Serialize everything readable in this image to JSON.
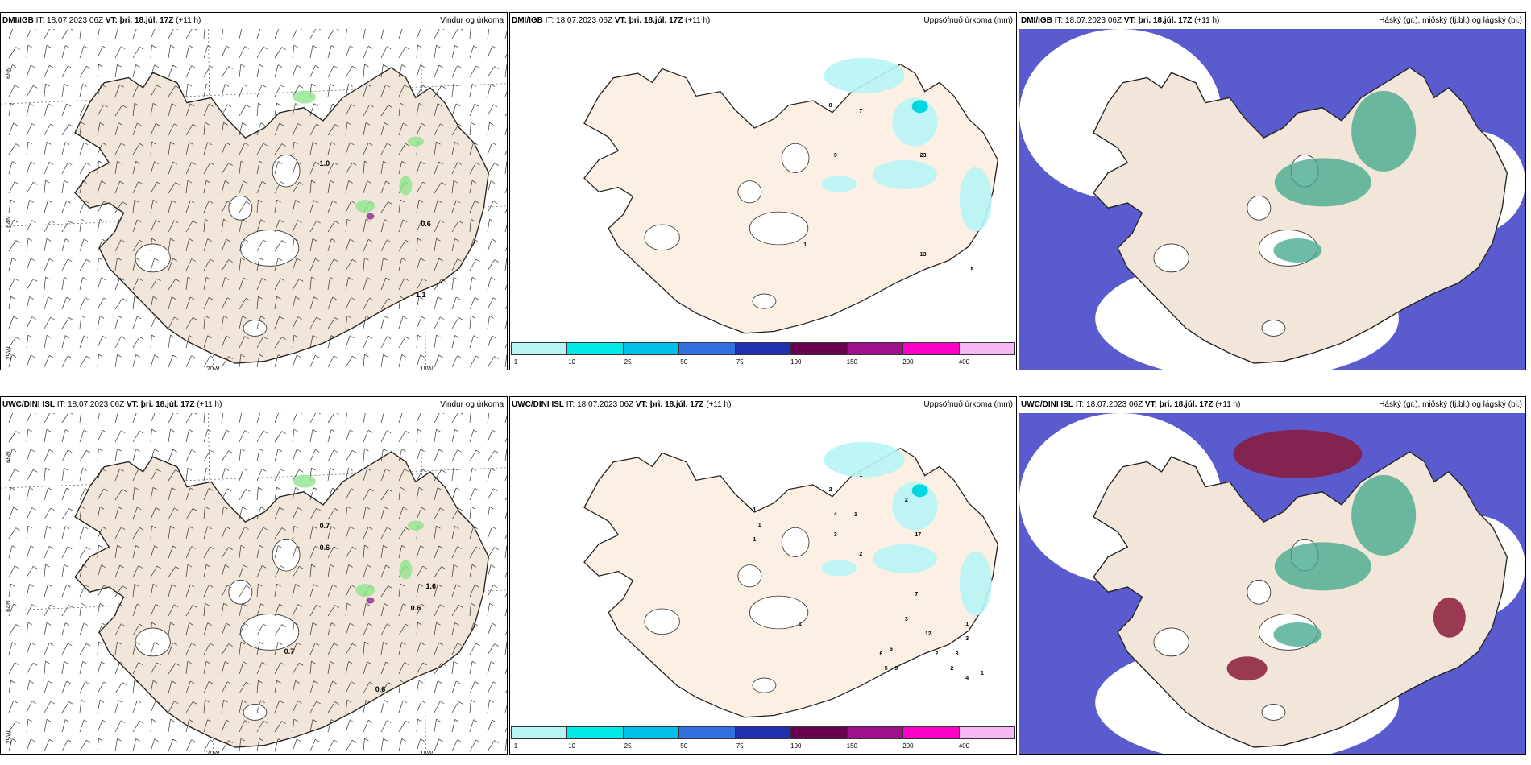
{
  "colors": {
    "land": "#f1e6d9",
    "ocean": "#ffffff",
    "precip_green": "#8ee68e",
    "precip_purple": "#a04ca0",
    "low_cloud": "#5b5bd0",
    "mid_cloud": "#3da68a",
    "high_cloud": "#8b1a3a"
  },
  "rows": [
    {
      "model_name": "DMI/IGB",
      "panels": [
        {
          "id": "wind",
          "it_label": "IT: 18.07.2023 06Z",
          "vt_label": "VT: þri. 18.júl. 17Z",
          "lead": "(+11 h)",
          "title_right": "Vindur og úrkoma",
          "grid_labels": [
            "65N",
            "64N",
            "20W",
            "15W",
            "25W"
          ],
          "values": [
            {
              "text": "1.0",
              "x": 0.63,
              "y": 0.24
            },
            {
              "text": "0.6",
              "x": 0.83,
              "y": 0.35
            },
            {
              "text": "1.1",
              "x": 0.82,
              "y": 0.48
            }
          ]
        },
        {
          "id": "precip",
          "it_label": "IT: 18.07.2023 06Z",
          "vt_label": "VT: þri. 18.júl. 17Z",
          "lead": "(+11 h)",
          "title_right": "Uppsöfnuð úrkoma (mm)",
          "values": [
            {
              "text": "8",
              "x": 0.63,
              "y": 0.15
            },
            {
              "text": "7",
              "x": 0.69,
              "y": 0.16
            },
            {
              "text": "9",
              "x": 0.64,
              "y": 0.25
            },
            {
              "text": "23",
              "x": 0.81,
              "y": 0.25
            },
            {
              "text": "1",
              "x": 0.58,
              "y": 0.43
            },
            {
              "text": "13",
              "x": 0.81,
              "y": 0.45
            },
            {
              "text": "5",
              "x": 0.91,
              "y": 0.48
            }
          ],
          "colorbar": [
            "1",
            "10",
            "25",
            "50",
            "75",
            "100",
            "150",
            "200",
            "400"
          ]
        },
        {
          "id": "clouds",
          "it_label": "IT: 18.07.2023 06Z",
          "vt_label": "VT: þri. 18.júl. 17Z",
          "lead": "(+11 h)",
          "title_right": "Háský (gr.), miðský (fj.bl.) og lágský (bl.)"
        }
      ]
    },
    {
      "model_name": "UWC/DINI ISL",
      "panels": [
        {
          "id": "wind",
          "it_label": "IT: 18.07.2023 06Z",
          "vt_label": "VT: þri. 18.júl. 17Z",
          "lead": "(+11 h)",
          "title_right": "Vindur og úrkoma",
          "grid_labels": [
            "65N",
            "64N",
            "20W",
            "15W",
            "25W"
          ],
          "values": [
            {
              "text": "0.7",
              "x": 0.63,
              "y": 0.2
            },
            {
              "text": "0.6",
              "x": 0.63,
              "y": 0.24
            },
            {
              "text": "1.6",
              "x": 0.84,
              "y": 0.31
            },
            {
              "text": "0.6",
              "x": 0.81,
              "y": 0.35
            },
            {
              "text": "0.7",
              "x": 0.56,
              "y": 0.43
            },
            {
              "text": "0.6",
              "x": 0.74,
              "y": 0.5
            }
          ]
        },
        {
          "id": "precip",
          "it_label": "IT: 18.07.2023 06Z",
          "vt_label": "VT: þri. 18.júl. 17Z",
          "lead": "(+11 h)",
          "title_right": "Uppsöfnuð úrkoma (mm)",
          "values": [
            {
              "text": "1",
              "x": 0.69,
              "y": 0.12
            },
            {
              "text": "2",
              "x": 0.63,
              "y": 0.15
            },
            {
              "text": "2",
              "x": 0.78,
              "y": 0.17
            },
            {
              "text": "4",
              "x": 0.64,
              "y": 0.2
            },
            {
              "text": "1",
              "x": 0.68,
              "y": 0.2
            },
            {
              "text": "3",
              "x": 0.64,
              "y": 0.24
            },
            {
              "text": "17",
              "x": 0.8,
              "y": 0.24
            },
            {
              "text": "2",
              "x": 0.69,
              "y": 0.28
            },
            {
              "text": "1",
              "x": 0.48,
              "y": 0.19
            },
            {
              "text": "1",
              "x": 0.49,
              "y": 0.22
            },
            {
              "text": "1",
              "x": 0.48,
              "y": 0.25
            },
            {
              "text": "7",
              "x": 0.8,
              "y": 0.36
            },
            {
              "text": "1",
              "x": 0.57,
              "y": 0.42
            },
            {
              "text": "3",
              "x": 0.78,
              "y": 0.41
            },
            {
              "text": "12",
              "x": 0.82,
              "y": 0.44
            },
            {
              "text": "6",
              "x": 0.75,
              "y": 0.47
            },
            {
              "text": "6",
              "x": 0.73,
              "y": 0.48
            },
            {
              "text": "5",
              "x": 0.74,
              "y": 0.51
            },
            {
              "text": "9",
              "x": 0.76,
              "y": 0.51
            },
            {
              "text": "2",
              "x": 0.84,
              "y": 0.48
            },
            {
              "text": "3",
              "x": 0.88,
              "y": 0.48
            },
            {
              "text": "2",
              "x": 0.87,
              "y": 0.51
            },
            {
              "text": "4",
              "x": 0.9,
              "y": 0.53
            },
            {
              "text": "1",
              "x": 0.93,
              "y": 0.52
            },
            {
              "text": "1",
              "x": 0.9,
              "y": 0.42
            },
            {
              "text": "3",
              "x": 0.9,
              "y": 0.45
            }
          ],
          "colorbar": [
            "1",
            "10",
            "25",
            "50",
            "75",
            "100",
            "150",
            "200",
            "400"
          ]
        },
        {
          "id": "clouds",
          "it_label": "IT: 18.07.2023 06Z",
          "vt_label": "VT: þri. 18.júl. 17Z",
          "lead": "(+11 h)",
          "title_right": "Háský (gr.), miðský (fj.bl.) og lágský (bl.)"
        }
      ]
    }
  ]
}
